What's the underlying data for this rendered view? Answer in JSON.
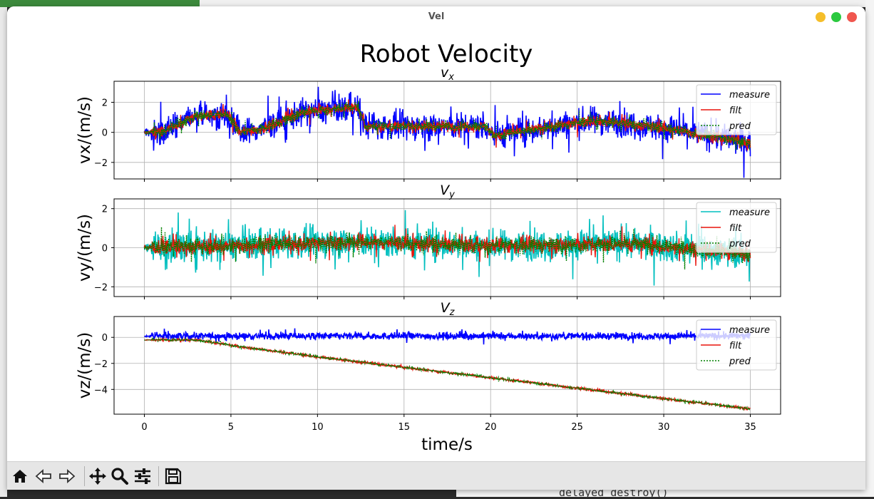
{
  "window": {
    "title": "Vel"
  },
  "background": {
    "bottom_text": "delayed destroy()"
  },
  "figure": {
    "suptitle": "Robot Velocity",
    "xlabel": "time/s",
    "x_ticks": [
      "0",
      "5",
      "10",
      "15",
      "20",
      "25",
      "30",
      "35"
    ]
  },
  "toolbar": {
    "items": [
      {
        "name": "home-icon"
      },
      {
        "name": "back-arrow-icon"
      },
      {
        "name": "forward-arrow-icon"
      },
      {
        "name": "pan-icon"
      },
      {
        "name": "zoom-icon"
      },
      {
        "name": "configure-subplots-icon"
      },
      {
        "name": "save-icon"
      }
    ]
  },
  "chart_data": [
    {
      "type": "line",
      "title": "v_x",
      "title_main": "v",
      "title_sub": "x",
      "title_italic": true,
      "ylabel": "vx/(m/s)",
      "xlim": [
        -1.75,
        36.75
      ],
      "ylim": [
        -3.1,
        3.4
      ],
      "y_ticks": [
        "2",
        "0",
        "−2"
      ],
      "y_tick_values": [
        2,
        0,
        -2
      ],
      "grid": true,
      "legend": "top-right",
      "series": [
        {
          "name": "measure",
          "color": "#0000ff",
          "style": "solid",
          "noise": 1.0,
          "trend": [
            [
              0,
              0
            ],
            [
              1,
              0
            ],
            [
              3,
              1.1
            ],
            [
              4.8,
              1.2
            ],
            [
              5.5,
              0
            ],
            [
              7,
              0.3
            ],
            [
              9,
              1.3
            ],
            [
              12.3,
              1.7
            ],
            [
              12.8,
              0.4
            ],
            [
              19.7,
              0.4
            ],
            [
              20.2,
              -0.2
            ],
            [
              26,
              0.8
            ],
            [
              30,
              0.3
            ],
            [
              35,
              -0.7
            ]
          ]
        },
        {
          "name": "filt",
          "color": "#e8140c",
          "style": "solid",
          "noise": 0.4,
          "trend": [
            [
              0,
              0
            ],
            [
              1,
              0
            ],
            [
              3,
              1.1
            ],
            [
              4.8,
              1.2
            ],
            [
              5.5,
              0
            ],
            [
              7,
              0.3
            ],
            [
              9,
              1.3
            ],
            [
              12.3,
              1.7
            ],
            [
              12.8,
              0.4
            ],
            [
              19.7,
              0.4
            ],
            [
              20.2,
              -0.2
            ],
            [
              26,
              0.8
            ],
            [
              30,
              0.3
            ],
            [
              35,
              -0.7
            ]
          ]
        },
        {
          "name": "pred",
          "color": "#008000",
          "style": "dotted",
          "noise": 0.4,
          "trend": [
            [
              0,
              0
            ],
            [
              1,
              0
            ],
            [
              3,
              1.1
            ],
            [
              4.8,
              1.2
            ],
            [
              5.5,
              0
            ],
            [
              7,
              0.3
            ],
            [
              9,
              1.3
            ],
            [
              12.3,
              1.7
            ],
            [
              12.8,
              0.4
            ],
            [
              19.7,
              0.4
            ],
            [
              20.2,
              -0.2
            ],
            [
              26,
              0.8
            ],
            [
              30,
              0.3
            ],
            [
              35,
              -0.7
            ]
          ]
        }
      ]
    },
    {
      "type": "line",
      "title": "V_y",
      "title_main": "V",
      "title_sub": "y",
      "title_italic": true,
      "ylabel": "vy/(m/s)",
      "xlim": [
        -1.75,
        36.75
      ],
      "ylim": [
        -2.5,
        2.5
      ],
      "y_ticks": [
        "2",
        "0",
        "−2"
      ],
      "y_tick_values": [
        2,
        0,
        -2
      ],
      "grid": true,
      "legend": "top-right",
      "series": [
        {
          "name": "measure",
          "color": "#00bfbf",
          "style": "solid",
          "noise": 0.85,
          "trend": [
            [
              0,
              0
            ],
            [
              5,
              0.1
            ],
            [
              12,
              0.3
            ],
            [
              20,
              0.1
            ],
            [
              28,
              0.2
            ],
            [
              35,
              -0.3
            ]
          ]
        },
        {
          "name": "filt",
          "color": "#e8140c",
          "style": "solid",
          "noise": 0.45,
          "trend": [
            [
              0,
              0
            ],
            [
              5,
              0.1
            ],
            [
              12,
              0.3
            ],
            [
              20,
              0.1
            ],
            [
              28,
              0.2
            ],
            [
              35,
              -0.3
            ]
          ]
        },
        {
          "name": "pred",
          "color": "#008000",
          "style": "dotted",
          "noise": 0.45,
          "trend": [
            [
              0,
              0
            ],
            [
              5,
              0.1
            ],
            [
              12,
              0.3
            ],
            [
              20,
              0.1
            ],
            [
              28,
              0.2
            ],
            [
              35,
              -0.3
            ]
          ]
        }
      ]
    },
    {
      "type": "line",
      "title": "V_z",
      "title_main": "V",
      "title_sub": "z",
      "title_italic": true,
      "ylabel": "vz/(m/s)",
      "xlim": [
        -1.75,
        36.75
      ],
      "ylim": [
        -5.9,
        1.6
      ],
      "y_ticks": [
        "0",
        "−2",
        "−4"
      ],
      "y_tick_values": [
        0,
        -2,
        -4
      ],
      "grid": true,
      "legend": "top-right",
      "series": [
        {
          "name": "measure",
          "color": "#0000ff",
          "style": "solid",
          "noise": 0.3,
          "trend": [
            [
              0,
              0.1
            ],
            [
              35,
              0.1
            ]
          ]
        },
        {
          "name": "filt",
          "color": "#e8140c",
          "style": "solid",
          "noise": 0.1,
          "trend": [
            [
              0,
              -0.2
            ],
            [
              3,
              -0.2
            ],
            [
              6,
              -0.8
            ],
            [
              10,
              -1.5
            ],
            [
              15,
              -2.3
            ],
            [
              20,
              -3.1
            ],
            [
              25,
              -3.9
            ],
            [
              30,
              -4.7
            ],
            [
              35,
              -5.5
            ]
          ]
        },
        {
          "name": "pred",
          "color": "#008000",
          "style": "dotted",
          "noise": 0.1,
          "trend": [
            [
              0,
              -0.2
            ],
            [
              3,
              -0.2
            ],
            [
              6,
              -0.8
            ],
            [
              10,
              -1.5
            ],
            [
              15,
              -2.3
            ],
            [
              20,
              -3.1
            ],
            [
              25,
              -3.9
            ],
            [
              30,
              -4.7
            ],
            [
              35,
              -5.5
            ]
          ]
        }
      ]
    }
  ]
}
